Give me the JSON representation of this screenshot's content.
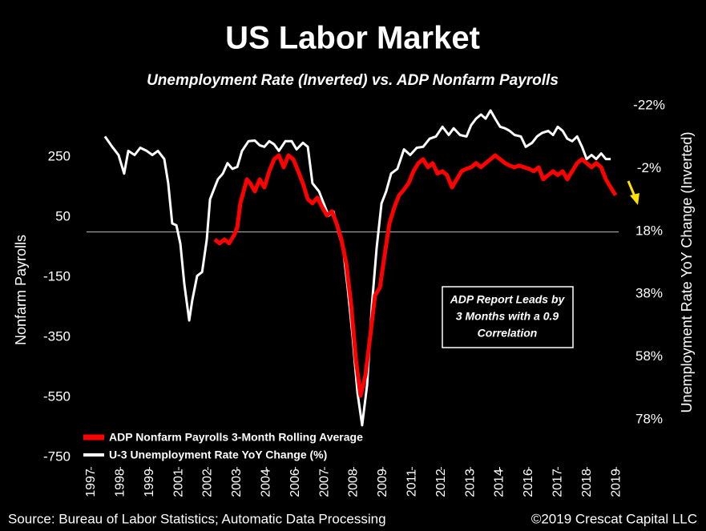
{
  "chart_data": {
    "type": "line",
    "title": "US Labor Market",
    "subtitle": "Unemployment Rate (Inverted) vs. ADP Nonfarm Payrolls",
    "y_label": "Nonfarm Payrolls",
    "y2_label": "Unemployment Rate YoY Change (Inverted)",
    "annotation": [
      "ADP Report Leads by",
      "3 Months with a 0.9",
      "Correlation"
    ],
    "source": "Source: Bureau of Labor Statistics; Automatic Data Processing",
    "credit": "©2019 Crescat Capital LLC",
    "legend": "lower left",
    "reference_line": 0,
    "xlim": [
      1997.1,
      2019.9
    ],
    "xticks": [
      {
        "value": 1997.3,
        "label": "1997"
      },
      {
        "value": 1998.55,
        "label": "1998"
      },
      {
        "value": 1999.8,
        "label": "1999"
      },
      {
        "value": 2001.05,
        "label": "2001"
      },
      {
        "value": 2002.3,
        "label": "2002"
      },
      {
        "value": 2003.55,
        "label": "2003"
      },
      {
        "value": 2004.8,
        "label": "2004"
      },
      {
        "value": 2006.05,
        "label": "2006"
      },
      {
        "value": 2007.3,
        "label": "2007"
      },
      {
        "value": 2008.55,
        "label": "2008"
      },
      {
        "value": 2009.8,
        "label": "2009"
      },
      {
        "value": 2011.05,
        "label": "2011"
      },
      {
        "value": 2012.3,
        "label": "2012"
      },
      {
        "value": 2013.55,
        "label": "2013"
      },
      {
        "value": 2014.8,
        "label": "2014"
      },
      {
        "value": 2016.05,
        "label": "2016"
      },
      {
        "value": 2017.3,
        "label": "2017"
      },
      {
        "value": 2018.55,
        "label": "2018"
      },
      {
        "value": 2019.8,
        "label": "2019"
      }
    ],
    "ylim": [
      -750,
      420
    ],
    "yticks": [
      250,
      50,
      -150,
      -350,
      -550,
      -750
    ],
    "y2lim": [
      90,
      -22
    ],
    "y2ticks": [
      {
        "value": -22,
        "label": "-22%"
      },
      {
        "value": -2,
        "label": "-2%"
      },
      {
        "value": 18,
        "label": "18%"
      },
      {
        "value": 38,
        "label": "38%"
      },
      {
        "value": 58,
        "label": "58%"
      },
      {
        "value": 78,
        "label": "78%"
      }
    ],
    "series": [
      {
        "name": "ADP Nonfarm Payrolls 3-Month Rolling Average",
        "color": "#ff0000",
        "axis": "y",
        "x": [
          2002.59,
          2002.8,
          2003.01,
          2003.21,
          2003.42,
          2003.56,
          2003.69,
          2003.83,
          2003.97,
          2004.11,
          2004.31,
          2004.52,
          2004.72,
          2004.93,
          2005.14,
          2005.34,
          2005.55,
          2005.75,
          2005.96,
          2006.17,
          2006.37,
          2006.58,
          2006.78,
          2006.99,
          2007.2,
          2007.4,
          2007.61,
          2007.81,
          2008.02,
          2008.23,
          2008.43,
          2008.64,
          2008.84,
          2009.05,
          2009.26,
          2009.46,
          2009.67,
          2009.87,
          2010.08,
          2010.29,
          2010.49,
          2010.7,
          2010.9,
          2011.11,
          2011.32,
          2011.52,
          2011.73,
          2011.93,
          2012.14,
          2012.35,
          2012.55,
          2012.76,
          2012.96,
          2013.17,
          2013.38,
          2013.58,
          2013.79,
          2014.0,
          2014.2,
          2014.41,
          2014.61,
          2014.82,
          2015.03,
          2015.23,
          2015.44,
          2015.64,
          2015.85,
          2016.06,
          2016.26,
          2016.47,
          2016.67,
          2016.88,
          2017.09,
          2017.29,
          2017.5,
          2017.7,
          2017.91,
          2018.12,
          2018.33,
          2018.53,
          2018.74,
          2018.94,
          2019.15,
          2019.35,
          2019.56,
          2019.77
        ],
        "values": [
          -25,
          -38,
          -25,
          -38,
          -11,
          15,
          95,
          135,
          175,
          162,
          135,
          175,
          148,
          202,
          242,
          255,
          215,
          255,
          242,
          202,
          162,
          109,
          95,
          114,
          82,
          55,
          69,
          29,
          -25,
          -105,
          -238,
          -425,
          -545,
          -478,
          -345,
          -211,
          -185,
          -78,
          29,
          82,
          122,
          141,
          162,
          202,
          229,
          242,
          215,
          229,
          194,
          202,
          189,
          148,
          175,
          202,
          210,
          215,
          229,
          215,
          229,
          242,
          255,
          242,
          229,
          221,
          215,
          221,
          215,
          210,
          202,
          215,
          175,
          189,
          202,
          189,
          202,
          175,
          202,
          229,
          242,
          229,
          215,
          229,
          215,
          175,
          148,
          122
        ]
      },
      {
        "name": "U-3 Unemployment Rate YoY Change (%)",
        "color": "#ffffff",
        "axis": "y2",
        "x": [
          1997.89,
          1998.2,
          1998.47,
          1998.71,
          1998.89,
          1999.16,
          1999.4,
          1999.68,
          1999.92,
          2000.16,
          2000.43,
          2000.6,
          2000.77,
          2000.95,
          2001.12,
          2001.29,
          2001.5,
          2001.63,
          2001.84,
          2002.05,
          2002.25,
          2002.39,
          2002.59,
          2002.73,
          2002.94,
          2003.14,
          2003.35,
          2003.56,
          2003.76,
          2004.04,
          2004.31,
          2004.52,
          2004.72,
          2004.93,
          2005.14,
          2005.34,
          2005.62,
          2005.89,
          2006.1,
          2006.37,
          2006.58,
          2006.78,
          2007.06,
          2007.26,
          2007.47,
          2007.68,
          2007.88,
          2008.09,
          2008.29,
          2008.5,
          2008.71,
          2008.91,
          2009.12,
          2009.33,
          2009.53,
          2009.74,
          2009.94,
          2010.15,
          2010.42,
          2010.7,
          2010.97,
          2011.25,
          2011.52,
          2011.8,
          2012.07,
          2012.35,
          2012.62,
          2012.83,
          2013.1,
          2013.38,
          2013.58,
          2013.79,
          2014.0,
          2014.2,
          2014.41,
          2014.61,
          2014.82,
          2015.03,
          2015.23,
          2015.44,
          2015.71,
          2015.92,
          2016.19,
          2016.4,
          2016.61,
          2016.88,
          2017.09,
          2017.29,
          2017.5,
          2017.7,
          2017.91,
          2018.12,
          2018.33,
          2018.53,
          2018.74,
          2018.94,
          2019.15,
          2019.35,
          2019.56
        ],
        "values": [
          -12.2,
          -8.9,
          -6.3,
          -0.4,
          -7.6,
          -6.3,
          -8.6,
          -7.6,
          -6.3,
          -7.6,
          -5.0,
          2.7,
          15.5,
          16.1,
          22.0,
          34.8,
          46.4,
          40.0,
          32.2,
          31.0,
          20.7,
          7.8,
          4.0,
          1.4,
          -0.4,
          -3.7,
          -1.9,
          -2.5,
          -7.6,
          -10.7,
          -10.9,
          -9.4,
          -8.9,
          -10.7,
          -9.7,
          -7.6,
          -10.7,
          -10.7,
          -8.1,
          -10.2,
          -8.9,
          2.7,
          5.3,
          9.1,
          13.0,
          11.7,
          18.1,
          23.3,
          36.1,
          51.5,
          69.5,
          79.8,
          67.0,
          41.2,
          23.3,
          9.1,
          5.3,
          -0.4,
          -1.9,
          -8.1,
          -6.3,
          -8.6,
          -8.9,
          -11.5,
          -12.2,
          -15.3,
          -12.7,
          -14.8,
          -12.7,
          -12.2,
          -15.8,
          -17.9,
          -19.2,
          -17.9,
          -20.5,
          -17.9,
          -15.3,
          -14.8,
          -14.0,
          -12.7,
          -12.2,
          -8.9,
          -10.2,
          -12.2,
          -13.3,
          -14.0,
          -12.7,
          -15.3,
          -14.0,
          -11.5,
          -10.7,
          -12.2,
          -8.9,
          -5.0,
          -6.3,
          -5.0,
          -6.8,
          -5.0,
          -5.0
        ]
      }
    ]
  }
}
